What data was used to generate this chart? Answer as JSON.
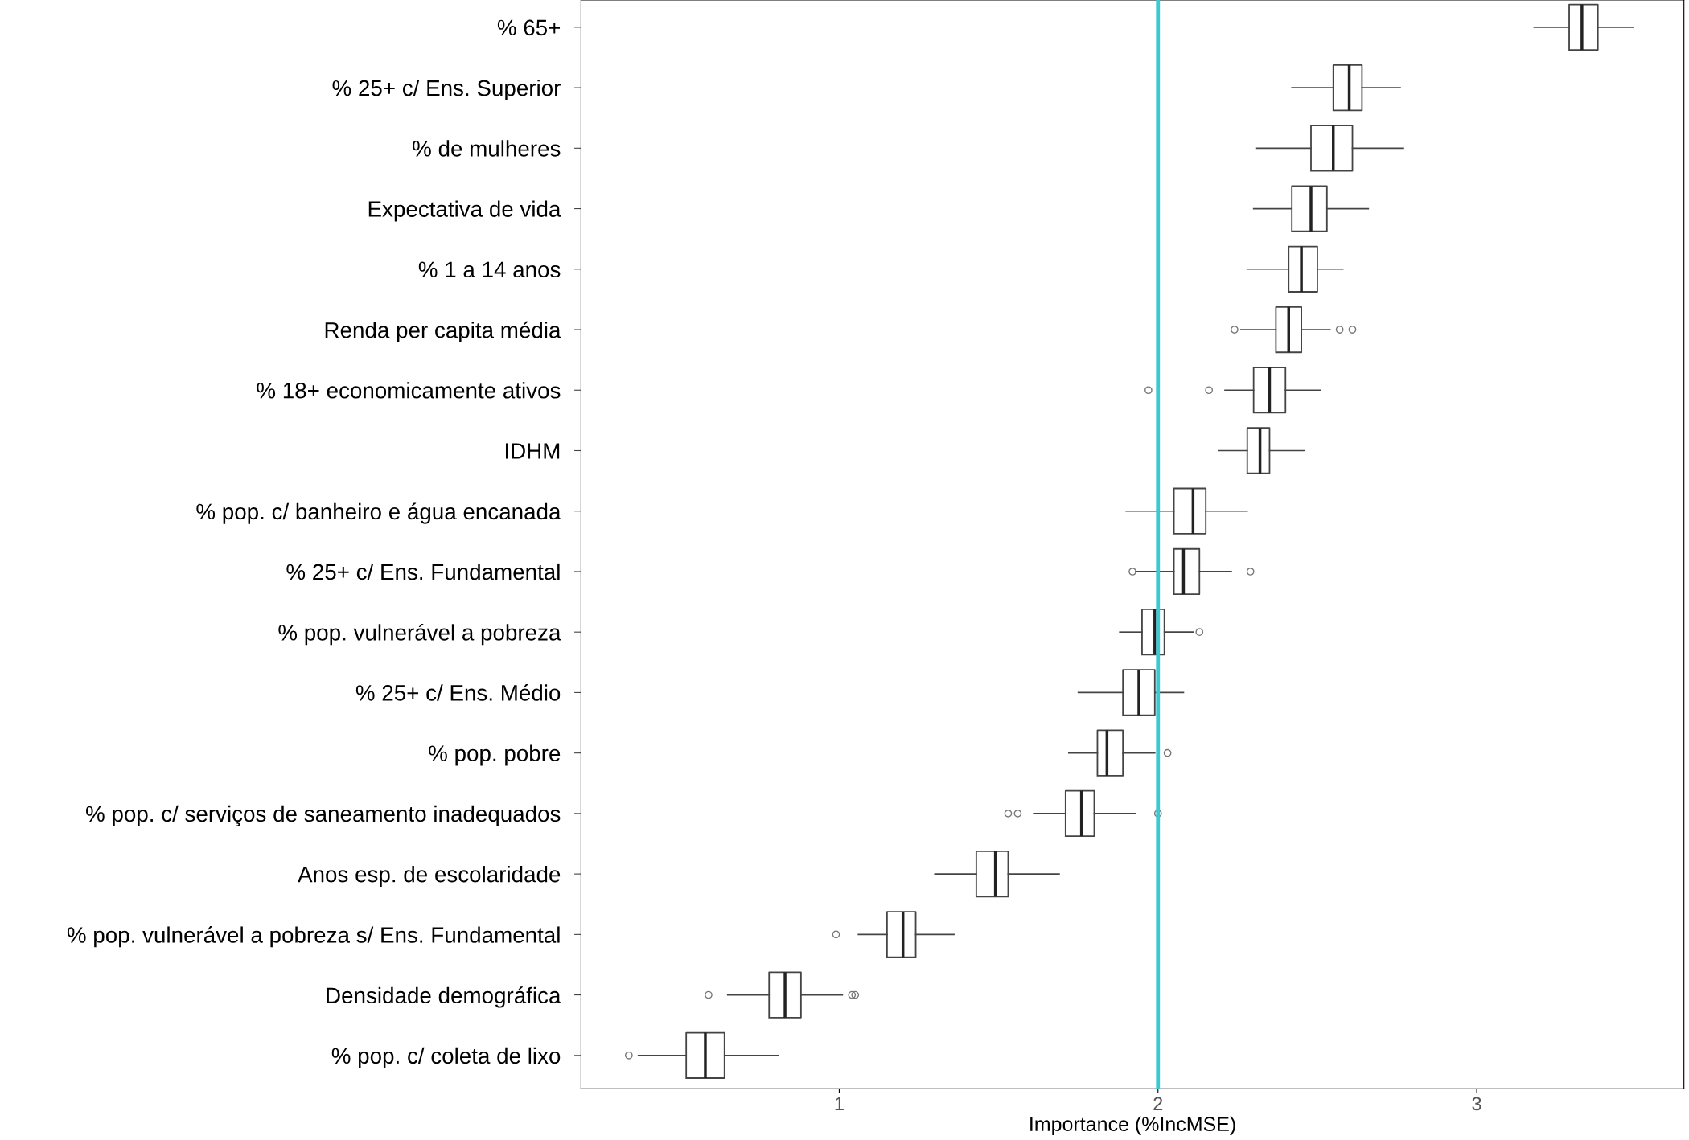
{
  "chart_data": {
    "type": "box",
    "orientation": "horizontal",
    "xlabel": "Importance (%IncMSE)",
    "categories": [
      "% 65+",
      "% 25+ c/ Ens. Superior",
      "% de mulheres",
      "Expectativa de vida",
      "% 1 a 14 anos",
      "Renda per capita média",
      "% 18+ economicamente ativos",
      "IDHM",
      "% pop. c/ banheiro e água encanada",
      "% 25+ c/ Ens. Fundamental",
      "% pop. vulnerável a pobreza",
      "% 25+ c/ Ens. Médio",
      "% pop. pobre",
      "% pop. c/ serviços de saneamento inadequados",
      "Anos esp. de escolaridade",
      "% pop. vulnerável a pobreza s/ Ens. Fundamental",
      "Densidade demográfica",
      "% pop. c/ coleta de lixo"
    ],
    "boxes": [
      {
        "low": 3.18,
        "q1": 3.29,
        "median": 3.33,
        "q3": 3.38,
        "high": 3.49
      },
      {
        "low": 2.42,
        "q1": 2.55,
        "median": 2.6,
        "q3": 2.64,
        "high": 2.76
      },
      {
        "low": 2.31,
        "q1": 2.48,
        "median": 2.55,
        "q3": 2.61,
        "high": 2.77
      },
      {
        "low": 2.3,
        "q1": 2.42,
        "median": 2.48,
        "q3": 2.53,
        "high": 2.66
      },
      {
        "low": 2.28,
        "q1": 2.41,
        "median": 2.45,
        "q3": 2.5,
        "high": 2.58
      },
      {
        "low": 2.26,
        "q1": 2.37,
        "median": 2.41,
        "q3": 2.45,
        "high": 2.54,
        "outliers": [
          2.24,
          2.57,
          2.61
        ]
      },
      {
        "low": 2.21,
        "q1": 2.3,
        "median": 2.35,
        "q3": 2.4,
        "high": 2.51,
        "outliers": [
          1.97,
          2.16
        ]
      },
      {
        "low": 2.19,
        "q1": 2.28,
        "median": 2.32,
        "q3": 2.35,
        "high": 2.46
      },
      {
        "low": 1.9,
        "q1": 2.05,
        "median": 2.11,
        "q3": 2.15,
        "high": 2.28
      },
      {
        "low": 1.93,
        "q1": 2.05,
        "median": 2.08,
        "q3": 2.13,
        "high": 2.23,
        "outliers": [
          1.92,
          2.29
        ]
      },
      {
        "low": 1.88,
        "q1": 1.95,
        "median": 1.99,
        "q3": 2.02,
        "high": 2.11,
        "outliers": [
          2.13
        ]
      },
      {
        "low": 1.75,
        "q1": 1.89,
        "median": 1.94,
        "q3": 1.99,
        "high": 2.08
      },
      {
        "low": 1.72,
        "q1": 1.81,
        "median": 1.84,
        "q3": 1.89,
        "high": 1.99,
        "outliers": [
          2.03
        ]
      },
      {
        "low": 1.61,
        "q1": 1.71,
        "median": 1.76,
        "q3": 1.8,
        "high": 1.93,
        "outliers": [
          1.53,
          1.56,
          2.0
        ]
      },
      {
        "low": 1.3,
        "q1": 1.43,
        "median": 1.49,
        "q3": 1.53,
        "high": 1.69
      },
      {
        "low": 1.06,
        "q1": 1.15,
        "median": 1.2,
        "q3": 1.24,
        "high": 1.36,
        "outliers": [
          0.99
        ]
      },
      {
        "low": 0.65,
        "q1": 0.78,
        "median": 0.83,
        "q3": 0.88,
        "high": 1.01,
        "outliers": [
          0.59,
          1.04,
          1.05
        ]
      },
      {
        "low": 0.37,
        "q1": 0.52,
        "median": 0.58,
        "q3": 0.64,
        "high": 0.81,
        "outliers": [
          0.34
        ]
      }
    ],
    "xlim": [
      0.19,
      3.65
    ],
    "xticks": [
      1,
      2,
      3
    ],
    "ref_lines": [
      {
        "axis": "x",
        "value": 2,
        "color": "#3ec8d2"
      }
    ],
    "grid": false,
    "legend": false
  }
}
